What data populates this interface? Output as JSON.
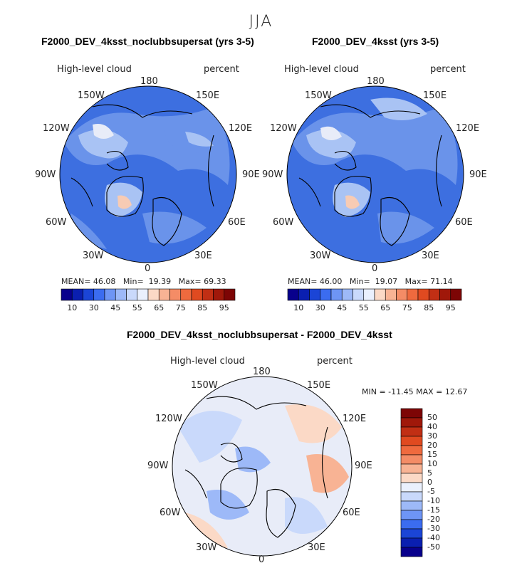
{
  "season": "JJA",
  "colors": {
    "ocean_blue": "#3d6fe0",
    "deep_blue": "#1f45c9",
    "mid_blue": "#6a93ea",
    "light_blue": "#a9c3f4",
    "pale": "#e8ecf8",
    "pale_red": "#f7cbb4",
    "coast": "#000000"
  },
  "panels": [
    {
      "title": "F2000_DEV_4ksst_noclubbsupersat (yrs 3-5)",
      "variable": "High-level cloud",
      "units": "percent",
      "stats": {
        "mean_label": "MEAN=",
        "mean": "46.08",
        "min_label": "Min=",
        "min": "19.39",
        "max_label": "Max=",
        "max": "69.33"
      }
    },
    {
      "title": "F2000_DEV_4ksst (yrs 3-5)",
      "variable": "High-level cloud",
      "units": "percent",
      "stats": {
        "mean_label": "MEAN=",
        "mean": "46.00",
        "min_label": "Min=",
        "min": "19.07",
        "max_label": "Max=",
        "max": "71.14"
      }
    }
  ],
  "diff": {
    "title": "F2000_DEV_4ksst_noclubbsupersat - F2000_DEV_4ksst",
    "variable": "High-level cloud",
    "units": "percent",
    "minmax": "MIN = -11.45  MAX =   12.67"
  },
  "lon_labels": {
    "top": "180",
    "upper_left": "150W",
    "upper_right": "150E",
    "left_high": "120W",
    "right_high": "120E",
    "left": "90W",
    "right": "90E",
    "left_low": "60W",
    "right_low": "60E",
    "lower_left": "30W",
    "lower_right": "30E",
    "bottom": "0"
  },
  "abs_colorbar": {
    "colors": [
      "#08008c",
      "#0a1fb0",
      "#1b45d6",
      "#3b6cf0",
      "#6e95f5",
      "#9db9f8",
      "#c9d9fb",
      "#eaf0fd",
      "#fbd9c6",
      "#f8b394",
      "#f48c66",
      "#ef6a3e",
      "#e04a20",
      "#c12f14",
      "#a0180a",
      "#7d0505"
    ],
    "labels": [
      "10",
      "30",
      "45",
      "55",
      "65",
      "75",
      "85",
      "95"
    ]
  },
  "diff_colorbar": {
    "colors": [
      "#08008c",
      "#0a1fb0",
      "#1b45d6",
      "#3b6cf0",
      "#6e95f5",
      "#9db9f8",
      "#c9d9fb",
      "#eaf0fd",
      "#fbd9c6",
      "#f8b394",
      "#f48c66",
      "#ef6a3e",
      "#e04a20",
      "#c12f14",
      "#a0180a",
      "#7d0505"
    ],
    "labels": [
      "50",
      "40",
      "30",
      "20",
      "15",
      "10",
      "5",
      "0",
      "-5",
      "-10",
      "-15",
      "-20",
      "-30",
      "-40",
      "-50"
    ]
  }
}
